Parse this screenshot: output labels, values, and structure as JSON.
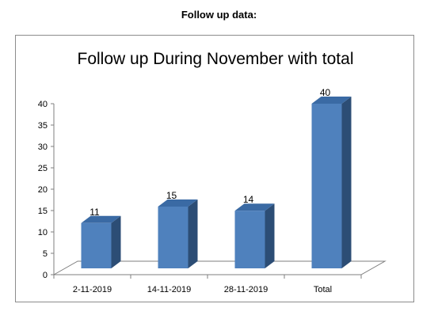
{
  "page": {
    "heading": "Follow up data:"
  },
  "chart_data": {
    "type": "bar",
    "title": "Follow up During November with total",
    "categories": [
      "2-11-2019",
      "14-11-2019",
      "28-11-2019",
      "Total"
    ],
    "values": [
      11,
      15,
      14,
      40
    ],
    "data_labels": [
      "11",
      "15",
      "14",
      "40"
    ],
    "y_ticks": [
      "0",
      "5",
      "10",
      "15",
      "20",
      "25",
      "30",
      "35",
      "40"
    ],
    "ylim": [
      0,
      40
    ],
    "xlabel": "",
    "ylabel": "",
    "grid": false,
    "legend": "none",
    "style": "3d-column",
    "colors": {
      "bar_front": "#4f81bd",
      "bar_side": "#2c4d75",
      "bar_top": "#3a6aa4",
      "axis": "#7f7f7f"
    }
  }
}
